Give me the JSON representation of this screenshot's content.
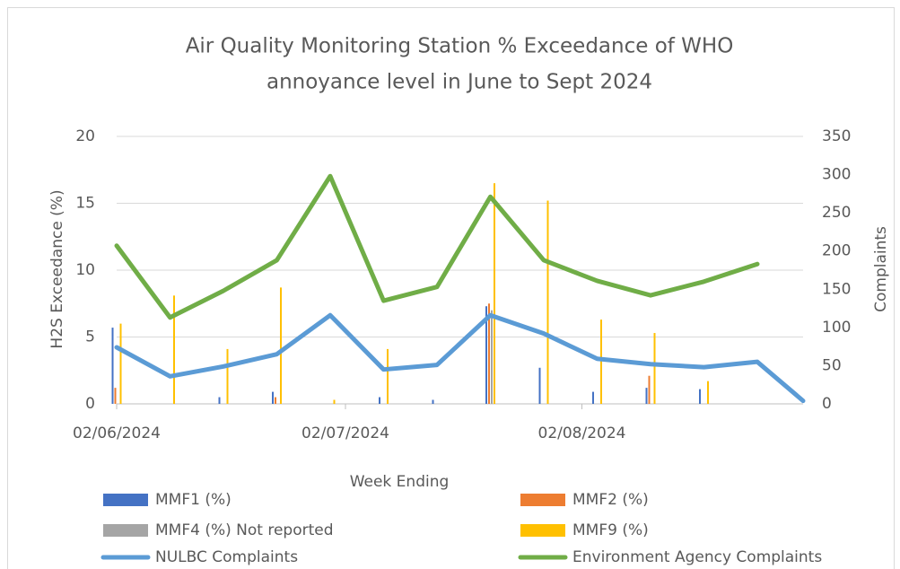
{
  "chart_data": {
    "type": "combo",
    "title": [
      "Air Quality Monitoring Station % Exceedance of WHO",
      "annoyance level in June to Sept 2024"
    ],
    "x_label": "Week Ending",
    "y_label": "H2S Exceedance (%)",
    "y2_label": "Complaints",
    "x": [
      "2024-06-02",
      "2024-06-09",
      "2024-06-16",
      "2024-06-23",
      "2024-06-30",
      "2024-07-07",
      "2024-07-14",
      "2024-07-21",
      "2024-07-28",
      "2024-08-04",
      "2024-08-11",
      "2024-08-18",
      "2024-08-25",
      "2024-08-31"
    ],
    "xlim": [
      "2024-06-02",
      "2024-08-31"
    ],
    "xticks": [
      {
        "value": "2024-06-02",
        "label": "02/06/2024"
      },
      {
        "value": "2024-07-02",
        "label": "02/07/2024"
      },
      {
        "value": "2024-08-02",
        "label": "02/08/2024"
      }
    ],
    "ylim": [
      0,
      20
    ],
    "yticks": [
      0,
      5,
      10,
      15,
      20
    ],
    "y2lim": [
      0,
      350
    ],
    "y2ticks": [
      0,
      50,
      100,
      150,
      200,
      250,
      300,
      350
    ],
    "grid": true,
    "series": [
      {
        "name": "MMF1 (%)",
        "type": "bar",
        "color": "#4472c4",
        "values": [
          5.7,
          0,
          0.5,
          0.9,
          0,
          0.5,
          0.3,
          7.3,
          2.7,
          0.9,
          1.2,
          1.1,
          0,
          0
        ]
      },
      {
        "name": "MMF2 (%)",
        "type": "bar",
        "color": "#ed7d31",
        "values": [
          1.2,
          0,
          0,
          0.5,
          0,
          0,
          0,
          7.5,
          0,
          0,
          2.1,
          0,
          0,
          0
        ]
      },
      {
        "name": "MMF4 (%) Not reported",
        "type": "bar",
        "color": "#a5a5a5",
        "values": [
          0,
          0,
          0,
          0,
          0,
          0,
          0,
          7,
          0,
          0,
          0,
          0,
          0,
          0
        ]
      },
      {
        "name": "MMF9 (%)",
        "type": "bar",
        "color": "#ffc000",
        "values": [
          6.0,
          8.1,
          4.1,
          8.7,
          0.3,
          4.1,
          0,
          16.5,
          15.2,
          6.3,
          5.3,
          1.7,
          0,
          0
        ]
      },
      {
        "name": "NULBC Complaints",
        "type": "line",
        "axis": "y2",
        "color": "#5b9bd5",
        "values": [
          74,
          36,
          49,
          65,
          116,
          45,
          51,
          116,
          92,
          59,
          52,
          48,
          55,
          4
        ]
      },
      {
        "name": "Environment Agency Complaints",
        "type": "line",
        "axis": "y2",
        "color": "#70ad47",
        "values": [
          207,
          113,
          148,
          188,
          298,
          135,
          153,
          271,
          188,
          161,
          142,
          160,
          183,
          null
        ]
      }
    ]
  }
}
